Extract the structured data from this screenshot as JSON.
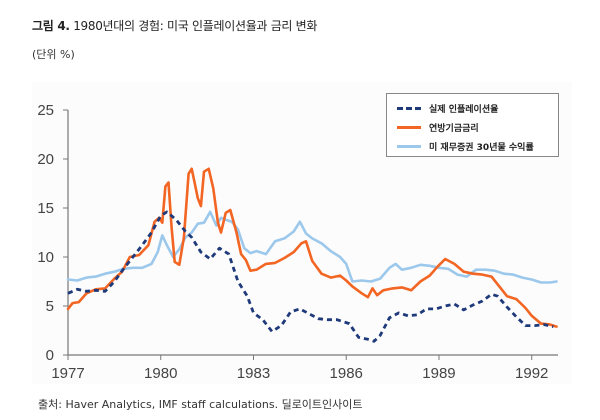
{
  "header": {
    "figure_label": "그림  4.",
    "title": "1980년대의 경험: 미국 인플레이션율과 금리 변화",
    "unit": "(단위 %)"
  },
  "source": "출처: Haver Analytics, IMF staff calculations.  딜로이트인사이트",
  "colors": {
    "inflation": "#1f3a7a",
    "fed_funds": "#f26522",
    "treasury30": "#9cc8ec"
  },
  "chart_data": {
    "type": "line",
    "title": "1980년대의 경험: 미국 인플레이션율과 금리 변화",
    "xlabel": "",
    "ylabel": "(단위 %)",
    "xlim": [
      1977,
      1992.85
    ],
    "ylim": [
      0,
      25
    ],
    "yticks": [
      "0",
      "5",
      "10",
      "15",
      "20",
      "25"
    ],
    "xticks": [
      "1977",
      "1980",
      "1983",
      "1986",
      "1989",
      "1992"
    ],
    "legend_position": "top-right",
    "series": [
      {
        "name": "실제 인플레이션율",
        "style": "dashed",
        "x": [
          1977.0,
          1977.3,
          1977.6,
          1977.9,
          1978.2,
          1978.5,
          1978.8,
          1979.1,
          1979.4,
          1979.7,
          1980.0,
          1980.2,
          1980.5,
          1980.8,
          1981.0,
          1981.3,
          1981.6,
          1981.9,
          1982.2,
          1982.5,
          1982.8,
          1983.0,
          1983.3,
          1983.6,
          1983.9,
          1984.2,
          1984.5,
          1984.8,
          1985.1,
          1985.4,
          1985.7,
          1985.9,
          1986.1,
          1986.4,
          1986.7,
          1986.9,
          1987.1,
          1987.4,
          1987.7,
          1988.0,
          1988.3,
          1988.6,
          1988.9,
          1989.2,
          1989.5,
          1989.8,
          1990.1,
          1990.4,
          1990.7,
          1990.9,
          1991.2,
          1991.5,
          1991.8,
          1992.1,
          1992.4,
          1992.7
        ],
        "values": [
          6.3,
          6.7,
          6.5,
          6.6,
          6.5,
          7.5,
          8.8,
          10.0,
          11.2,
          12.5,
          14.2,
          14.6,
          13.8,
          12.6,
          12.0,
          10.5,
          9.8,
          10.9,
          10.3,
          7.5,
          6.0,
          4.3,
          3.6,
          2.4,
          3.0,
          4.4,
          4.7,
          4.2,
          3.7,
          3.6,
          3.6,
          3.4,
          3.2,
          1.8,
          1.6,
          1.4,
          2.0,
          3.8,
          4.3,
          4.0,
          4.1,
          4.7,
          4.7,
          5.0,
          5.2,
          4.6,
          5.1,
          5.5,
          6.2,
          6.0,
          4.9,
          3.9,
          3.0,
          3.0,
          3.1,
          2.9
        ]
      },
      {
        "name": "연방기금금리",
        "style": "solid",
        "x": [
          1977.0,
          1977.15,
          1977.35,
          1977.6,
          1977.9,
          1978.2,
          1978.5,
          1978.75,
          1979.0,
          1979.3,
          1979.6,
          1979.8,
          1979.95,
          1980.05,
          1980.15,
          1980.25,
          1980.35,
          1980.45,
          1980.6,
          1980.75,
          1980.9,
          1981.0,
          1981.1,
          1981.2,
          1981.3,
          1981.4,
          1981.55,
          1981.7,
          1981.85,
          1981.95,
          1982.1,
          1982.25,
          1982.45,
          1982.6,
          1982.75,
          1982.9,
          1983.1,
          1983.4,
          1983.7,
          1984.0,
          1984.3,
          1984.55,
          1984.7,
          1984.9,
          1985.2,
          1985.5,
          1985.8,
          1986.0,
          1986.2,
          1986.5,
          1986.7,
          1986.85,
          1987.0,
          1987.2,
          1987.5,
          1987.8,
          1988.1,
          1988.4,
          1988.7,
          1988.95,
          1989.2,
          1989.5,
          1989.8,
          1990.1,
          1990.4,
          1990.7,
          1990.95,
          1991.2,
          1991.5,
          1991.8,
          1992.0,
          1992.3,
          1992.6,
          1992.8
        ],
        "values": [
          4.7,
          5.3,
          5.4,
          6.3,
          6.7,
          6.8,
          7.8,
          8.5,
          10.0,
          10.2,
          11.2,
          13.6,
          14.0,
          13.5,
          17.2,
          17.6,
          13.0,
          9.5,
          9.2,
          12.0,
          18.5,
          19.0,
          17.5,
          16.0,
          15.2,
          18.7,
          19.0,
          17.0,
          13.5,
          12.5,
          14.5,
          14.8,
          12.5,
          10.3,
          9.7,
          8.6,
          8.7,
          9.3,
          9.4,
          9.9,
          10.5,
          11.4,
          11.6,
          9.6,
          8.3,
          7.9,
          8.1,
          7.6,
          7.0,
          6.3,
          5.9,
          6.8,
          6.1,
          6.6,
          6.8,
          6.9,
          6.6,
          7.5,
          8.1,
          9.0,
          9.8,
          9.3,
          8.5,
          8.3,
          8.2,
          8.0,
          7.0,
          6.0,
          5.7,
          4.8,
          4.0,
          3.2,
          3.1,
          2.9
        ]
      },
      {
        "name": "미 재무증권 30년물 수익률",
        "style": "solid",
        "x": [
          1977.0,
          1977.3,
          1977.6,
          1977.9,
          1978.2,
          1978.5,
          1978.8,
          1979.1,
          1979.4,
          1979.7,
          1979.9,
          1980.05,
          1980.2,
          1980.4,
          1980.6,
          1980.8,
          1981.0,
          1981.2,
          1981.4,
          1981.6,
          1981.8,
          1981.95,
          1982.1,
          1982.3,
          1982.5,
          1982.7,
          1982.9,
          1983.1,
          1983.4,
          1983.7,
          1984.0,
          1984.3,
          1984.5,
          1984.7,
          1984.9,
          1985.2,
          1985.5,
          1985.8,
          1986.0,
          1986.2,
          1986.5,
          1986.8,
          1987.1,
          1987.4,
          1987.6,
          1987.8,
          1988.1,
          1988.4,
          1988.7,
          1989.0,
          1989.3,
          1989.6,
          1989.9,
          1990.2,
          1990.5,
          1990.8,
          1991.1,
          1991.4,
          1991.7,
          1992.0,
          1992.3,
          1992.6,
          1992.8
        ],
        "values": [
          7.7,
          7.6,
          7.9,
          8.0,
          8.3,
          8.5,
          8.8,
          8.9,
          8.9,
          9.3,
          10.5,
          12.2,
          11.2,
          10.0,
          10.8,
          12.0,
          12.5,
          13.4,
          13.5,
          14.6,
          13.2,
          14.0,
          13.8,
          13.6,
          12.8,
          10.9,
          10.4,
          10.6,
          10.3,
          11.6,
          11.9,
          12.6,
          13.6,
          12.4,
          11.9,
          11.4,
          10.6,
          10.0,
          9.3,
          7.5,
          7.6,
          7.5,
          7.8,
          8.9,
          9.3,
          8.7,
          8.9,
          9.2,
          9.1,
          8.9,
          8.8,
          8.2,
          8.0,
          8.7,
          8.7,
          8.6,
          8.3,
          8.2,
          7.9,
          7.7,
          7.4,
          7.4,
          7.5
        ]
      }
    ]
  }
}
